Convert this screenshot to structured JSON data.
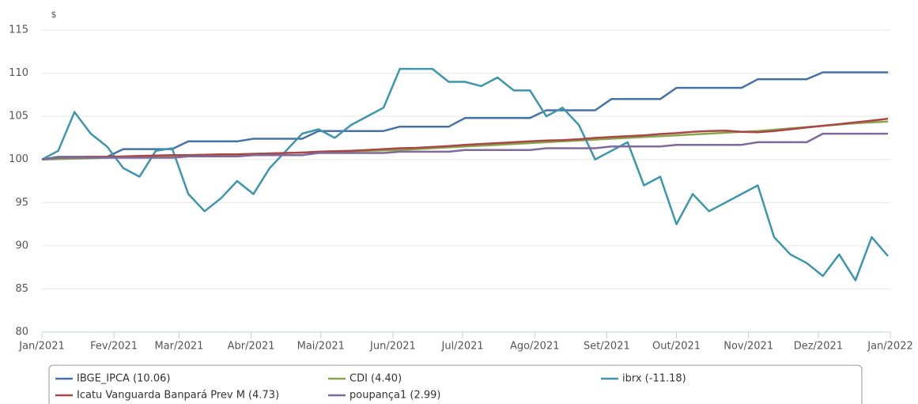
{
  "chart_data": {
    "type": "line",
    "y_label": "$",
    "xlim": [
      0,
      365
    ],
    "xticks": [
      {
        "value": 0,
        "label": "Jan/2021"
      },
      {
        "value": 31,
        "label": "Fev/2021"
      },
      {
        "value": 59,
        "label": "Mar/2021"
      },
      {
        "value": 90,
        "label": "Abr/2021"
      },
      {
        "value": 120,
        "label": "Mai/2021"
      },
      {
        "value": 151,
        "label": "Jun/2021"
      },
      {
        "value": 181,
        "label": "Jul/2021"
      },
      {
        "value": 212,
        "label": "Ago/2021"
      },
      {
        "value": 243,
        "label": "Set/2021"
      },
      {
        "value": 273,
        "label": "Out/2021"
      },
      {
        "value": 304,
        "label": "Nov/2021"
      },
      {
        "value": 334,
        "label": "Dez/2021"
      },
      {
        "value": 365,
        "label": "Jan/2022"
      }
    ],
    "ylim": [
      80,
      115
    ],
    "yticks": [
      80,
      85,
      90,
      95,
      100,
      105,
      110,
      115
    ],
    "grid": true,
    "legend": "bottom",
    "x": [
      0,
      7,
      14,
      21,
      28,
      35,
      42,
      49,
      56,
      63,
      70,
      77,
      84,
      91,
      98,
      105,
      112,
      119,
      126,
      133,
      140,
      147,
      154,
      161,
      168,
      175,
      182,
      189,
      196,
      203,
      210,
      217,
      224,
      231,
      238,
      245,
      252,
      259,
      266,
      273,
      280,
      287,
      294,
      301,
      308,
      315,
      322,
      329,
      336,
      343,
      350,
      357,
      364
    ],
    "series": [
      {
        "name": "IBGE_IPCA (10.06)",
        "color": "#4572a7",
        "values": [
          100,
          100.3,
          100.3,
          100.3,
          100.3,
          101.2,
          101.2,
          101.2,
          101.2,
          102.1,
          102.1,
          102.1,
          102.1,
          102.4,
          102.4,
          102.4,
          102.4,
          103.3,
          103.3,
          103.3,
          103.3,
          103.3,
          103.8,
          103.8,
          103.8,
          103.8,
          104.8,
          104.8,
          104.8,
          104.8,
          104.8,
          105.7,
          105.7,
          105.7,
          105.7,
          107,
          107,
          107,
          107,
          108.3,
          108.3,
          108.3,
          108.3,
          108.3,
          109.3,
          109.3,
          109.3,
          109.3,
          110.1,
          110.1,
          110.1,
          110.1,
          110.1
        ]
      },
      {
        "name": "CDI (4.40)",
        "color": "#89a54e",
        "values": [
          100,
          100.05,
          100.1,
          100.15,
          100.2,
          100.25,
          100.3,
          100.35,
          100.4,
          100.45,
          100.5,
          100.55,
          100.6,
          100.65,
          100.7,
          100.75,
          100.8,
          100.85,
          100.9,
          100.95,
          101,
          101.05,
          101.1,
          101.2,
          101.3,
          101.4,
          101.5,
          101.6,
          101.7,
          101.8,
          101.9,
          102,
          102.1,
          102.2,
          102.3,
          102.4,
          102.5,
          102.6,
          102.7,
          102.8,
          102.9,
          103,
          103.1,
          103.2,
          103.3,
          103.45,
          103.6,
          103.75,
          103.9,
          104.05,
          104.2,
          104.3,
          104.4
        ]
      },
      {
        "name": "ibrx (-11.18)",
        "color": "#3d96ae",
        "values": [
          100,
          101,
          105.5,
          103,
          101.5,
          99,
          98,
          101,
          101.3,
          96,
          94,
          95.5,
          97.5,
          96,
          99,
          101,
          103,
          103.5,
          102.5,
          104,
          105,
          106,
          110.5,
          110.5,
          110.5,
          109,
          109,
          108.5,
          109.5,
          108,
          108,
          105,
          106,
          104,
          100,
          101,
          102,
          97,
          98,
          92.5,
          96,
          94,
          95,
          96,
          97,
          91,
          89,
          88,
          86.5,
          89,
          86,
          91,
          88.8
        ]
      },
      {
        "name": "Icatu Vanguarda Banpará Prev M (4.73)",
        "color": "#aa4643",
        "values": [
          100,
          100.2,
          100.25,
          100.3,
          100.3,
          100.35,
          100.4,
          100.45,
          100.5,
          100.5,
          100.55,
          100.6,
          100.6,
          100.65,
          100.7,
          100.75,
          100.8,
          100.9,
          100.95,
          101,
          101.1,
          101.2,
          101.3,
          101.35,
          101.45,
          101.55,
          101.7,
          101.8,
          101.9,
          102,
          102.1,
          102.2,
          102.25,
          102.35,
          102.5,
          102.6,
          102.7,
          102.8,
          102.95,
          103.05,
          103.2,
          103.3,
          103.35,
          103.2,
          103.15,
          103.3,
          103.5,
          103.7,
          103.9,
          104.1,
          104.3,
          104.5,
          104.73
        ]
      },
      {
        "name": "poupança1 (2.99)",
        "color": "#80699b",
        "values": [
          100,
          100.2,
          100.2,
          100.2,
          100.2,
          100.2,
          100.2,
          100.2,
          100.2,
          100.35,
          100.35,
          100.35,
          100.35,
          100.5,
          100.5,
          100.5,
          100.5,
          100.75,
          100.75,
          100.75,
          100.75,
          100.75,
          100.9,
          100.9,
          100.9,
          100.9,
          101.1,
          101.1,
          101.1,
          101.1,
          101.1,
          101.3,
          101.3,
          101.3,
          101.3,
          101.5,
          101.5,
          101.5,
          101.5,
          101.7,
          101.7,
          101.7,
          101.7,
          101.7,
          102,
          102,
          102,
          102,
          102.99,
          102.99,
          102.99,
          102.99,
          102.99
        ]
      }
    ]
  }
}
